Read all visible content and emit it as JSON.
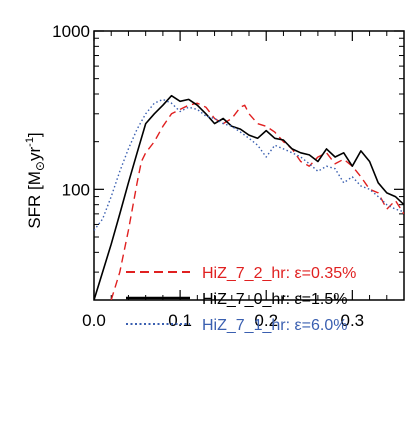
{
  "chart_data": {
    "type": "line",
    "title": "",
    "xlabel": "",
    "ylabel": "SFR  [M⊙yr⁻¹]",
    "ylabel_parts": {
      "main": "SFR  [M",
      "sub": "⊙",
      "mid": "yr",
      "sup": "-1",
      "end": "]"
    },
    "xlim": [
      0.0,
      0.36
    ],
    "ylim": [
      20,
      1000
    ],
    "yscale": "log",
    "grid": false,
    "legend_position": "bottom",
    "x_ticks": [
      {
        "value": 0.0,
        "label": "0.0"
      },
      {
        "value": 0.1,
        "label": "0.1"
      },
      {
        "value": 0.2,
        "label": "0.2"
      },
      {
        "value": 0.3,
        "label": "0.3"
      }
    ],
    "y_ticks": [
      {
        "value": 100,
        "label": "100"
      },
      {
        "value": 1000,
        "label": "1000"
      }
    ],
    "series": [
      {
        "name": "HiZ_7_2_hr: ε=0.35%",
        "color": "#e02020",
        "dash": "dashed",
        "x": [
          0.02,
          0.03,
          0.04,
          0.05,
          0.055,
          0.06,
          0.07,
          0.08,
          0.09,
          0.1,
          0.11,
          0.12,
          0.13,
          0.14,
          0.15,
          0.16,
          0.17,
          0.175,
          0.18,
          0.19,
          0.2,
          0.21,
          0.22,
          0.23,
          0.24,
          0.25,
          0.26,
          0.27,
          0.28,
          0.29,
          0.3,
          0.31,
          0.32,
          0.33,
          0.34,
          0.35,
          0.36
        ],
        "y": [
          20,
          30,
          55,
          110,
          150,
          170,
          200,
          250,
          300,
          320,
          340,
          350,
          330,
          280,
          260,
          280,
          330,
          340,
          300,
          260,
          250,
          230,
          200,
          180,
          150,
          140,
          160,
          170,
          145,
          155,
          140,
          120,
          100,
          95,
          75,
          85,
          70
        ]
      },
      {
        "name": "HiZ_7_0_hr: ε=1.5%",
        "color": "#000000",
        "dash": "solid",
        "x": [
          0.0,
          0.01,
          0.02,
          0.03,
          0.04,
          0.05,
          0.06,
          0.07,
          0.08,
          0.09,
          0.1,
          0.11,
          0.12,
          0.13,
          0.14,
          0.15,
          0.16,
          0.17,
          0.18,
          0.19,
          0.2,
          0.21,
          0.22,
          0.23,
          0.24,
          0.25,
          0.26,
          0.27,
          0.28,
          0.29,
          0.3,
          0.31,
          0.32,
          0.33,
          0.34,
          0.35,
          0.36
        ],
        "y": [
          20,
          30,
          45,
          70,
          110,
          170,
          260,
          300,
          340,
          390,
          360,
          370,
          340,
          300,
          260,
          280,
          250,
          240,
          220,
          210,
          235,
          210,
          205,
          180,
          170,
          165,
          150,
          180,
          160,
          170,
          140,
          175,
          150,
          110,
          95,
          90,
          80
        ]
      },
      {
        "name": "HiZ_7_1_hr: ε=6.0%",
        "color": "#3a5fb0",
        "dash": "dotted",
        "x": [
          0.0,
          0.01,
          0.02,
          0.03,
          0.04,
          0.05,
          0.06,
          0.07,
          0.08,
          0.09,
          0.1,
          0.11,
          0.12,
          0.13,
          0.14,
          0.15,
          0.16,
          0.17,
          0.18,
          0.19,
          0.2,
          0.21,
          0.22,
          0.23,
          0.24,
          0.25,
          0.26,
          0.27,
          0.28,
          0.29,
          0.3,
          0.31,
          0.32,
          0.33,
          0.34,
          0.35,
          0.36
        ],
        "y": [
          55,
          65,
          90,
          130,
          180,
          240,
          300,
          350,
          370,
          350,
          310,
          330,
          320,
          290,
          280,
          260,
          250,
          230,
          210,
          190,
          160,
          190,
          180,
          170,
          160,
          145,
          130,
          140,
          135,
          110,
          120,
          105,
          100,
          90,
          80,
          75,
          72
        ]
      }
    ]
  }
}
